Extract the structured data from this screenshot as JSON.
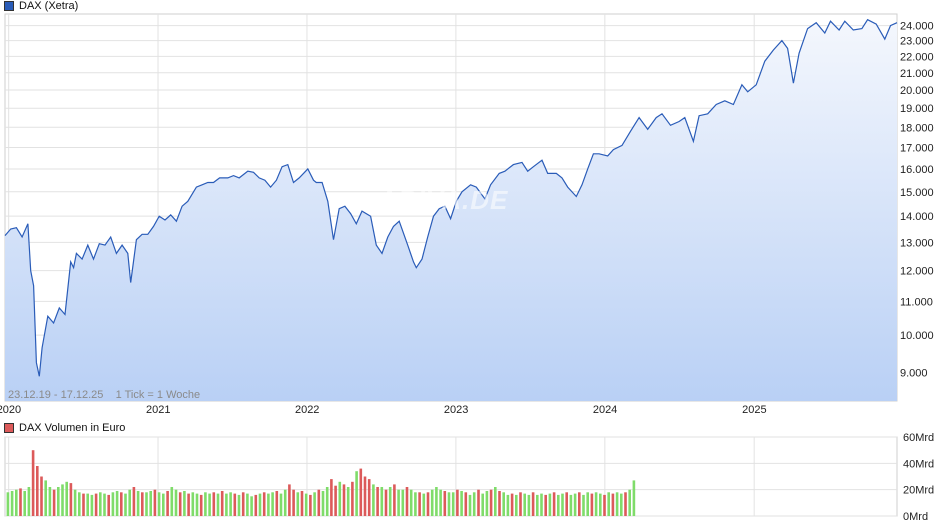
{
  "chart_data": [
    {
      "type": "area",
      "legend": "DAX (Xetra)",
      "color_line": "#2a5cb8",
      "color_fill_top": "#f4f7fd",
      "color_fill_bottom": "#b9d0f5",
      "range_label": "23.12.19 - 17.12.25    1 Tick = 1 Woche",
      "watermark": "ARIVA.DE",
      "y_ticks": [
        {
          "v": 9000,
          "label": "9.000"
        },
        {
          "v": 10000,
          "label": "10.000"
        },
        {
          "v": 11000,
          "label": "11.000"
        },
        {
          "v": 12000,
          "label": "12.000"
        },
        {
          "v": 13000,
          "label": "13.000"
        },
        {
          "v": 14000,
          "label": "14.000"
        },
        {
          "v": 15000,
          "label": "15.000"
        },
        {
          "v": 16000,
          "label": "16.000"
        },
        {
          "v": 17000,
          "label": "17.000"
        },
        {
          "v": 18000,
          "label": "18.000"
        },
        {
          "v": 19000,
          "label": "19.000"
        },
        {
          "v": 20000,
          "label": "20.000"
        },
        {
          "v": 21000,
          "label": "21.000"
        },
        {
          "v": 22000,
          "label": "22.000"
        },
        {
          "v": 23000,
          "label": "23.000"
        },
        {
          "v": 24000,
          "label": "24.000"
        }
      ],
      "y_scale": "log",
      "x_ticks": [
        "2020",
        "2021",
        "2022",
        "2023",
        "2024",
        "2025"
      ],
      "points": [
        [
          "2019-12-23",
          13250
        ],
        [
          "2020-01-06",
          13500
        ],
        [
          "2020-01-20",
          13550
        ],
        [
          "2020-02-03",
          13200
        ],
        [
          "2020-02-17",
          13700
        ],
        [
          "2020-02-24",
          12000
        ],
        [
          "2020-03-02",
          11500
        ],
        [
          "2020-03-09",
          9250
        ],
        [
          "2020-03-16",
          8900
        ],
        [
          "2020-03-23",
          9650
        ],
        [
          "2020-04-06",
          10550
        ],
        [
          "2020-04-20",
          10350
        ],
        [
          "2020-05-04",
          10800
        ],
        [
          "2020-05-18",
          10600
        ],
        [
          "2020-06-01",
          12300
        ],
        [
          "2020-06-08",
          12100
        ],
        [
          "2020-06-15",
          12600
        ],
        [
          "2020-06-29",
          12400
        ],
        [
          "2020-07-13",
          12900
        ],
        [
          "2020-07-27",
          12400
        ],
        [
          "2020-08-10",
          12950
        ],
        [
          "2020-08-24",
          12900
        ],
        [
          "2020-09-07",
          13200
        ],
        [
          "2020-09-21",
          12600
        ],
        [
          "2020-10-05",
          12900
        ],
        [
          "2020-10-19",
          12600
        ],
        [
          "2020-10-26",
          11600
        ],
        [
          "2020-11-09",
          13100
        ],
        [
          "2020-11-23",
          13300
        ],
        [
          "2020-12-07",
          13300
        ],
        [
          "2020-12-21",
          13600
        ],
        [
          "2021-01-04",
          14000
        ],
        [
          "2021-01-18",
          13850
        ],
        [
          "2021-02-01",
          14050
        ],
        [
          "2021-02-15",
          13800
        ],
        [
          "2021-03-01",
          14400
        ],
        [
          "2021-03-15",
          14600
        ],
        [
          "2021-04-05",
          15200
        ],
        [
          "2021-04-19",
          15300
        ],
        [
          "2021-05-03",
          15400
        ],
        [
          "2021-05-17",
          15400
        ],
        [
          "2021-06-01",
          15600
        ],
        [
          "2021-06-21",
          15600
        ],
        [
          "2021-07-05",
          15700
        ],
        [
          "2021-07-19",
          15600
        ],
        [
          "2021-08-09",
          15900
        ],
        [
          "2021-08-23",
          15850
        ],
        [
          "2021-09-06",
          15600
        ],
        [
          "2021-09-20",
          15500
        ],
        [
          "2021-10-04",
          15200
        ],
        [
          "2021-10-18",
          15500
        ],
        [
          "2021-11-01",
          16100
        ],
        [
          "2021-11-15",
          16200
        ],
        [
          "2021-11-29",
          15400
        ],
        [
          "2021-12-13",
          15600
        ],
        [
          "2022-01-03",
          16000
        ],
        [
          "2022-01-17",
          15500
        ],
        [
          "2022-01-24",
          15400
        ],
        [
          "2022-02-07",
          15400
        ],
        [
          "2022-02-21",
          14600
        ],
        [
          "2022-03-07",
          13100
        ],
        [
          "2022-03-21",
          14300
        ],
        [
          "2022-04-04",
          14400
        ],
        [
          "2022-04-18",
          14100
        ],
        [
          "2022-05-02",
          13700
        ],
        [
          "2022-05-16",
          14200
        ],
        [
          "2022-06-06",
          14000
        ],
        [
          "2022-06-20",
          12900
        ],
        [
          "2022-07-04",
          12600
        ],
        [
          "2022-07-18",
          13200
        ],
        [
          "2022-08-01",
          13600
        ],
        [
          "2022-08-15",
          13800
        ],
        [
          "2022-09-05",
          12900
        ],
        [
          "2022-09-19",
          12300
        ],
        [
          "2022-09-26",
          12100
        ],
        [
          "2022-10-10",
          12400
        ],
        [
          "2022-10-24",
          13200
        ],
        [
          "2022-11-07",
          14000
        ],
        [
          "2022-11-21",
          14300
        ],
        [
          "2022-12-05",
          14400
        ],
        [
          "2022-12-19",
          13900
        ],
        [
          "2023-01-02",
          14600
        ],
        [
          "2023-01-16",
          15000
        ],
        [
          "2023-02-06",
          15300
        ],
        [
          "2023-02-20",
          15200
        ],
        [
          "2023-03-13",
          14700
        ],
        [
          "2023-03-27",
          15300
        ],
        [
          "2023-04-17",
          15800
        ],
        [
          "2023-05-01",
          15900
        ],
        [
          "2023-05-22",
          16200
        ],
        [
          "2023-06-12",
          16300
        ],
        [
          "2023-06-26",
          15900
        ],
        [
          "2023-07-10",
          16100
        ],
        [
          "2023-07-31",
          16400
        ],
        [
          "2023-08-14",
          15800
        ],
        [
          "2023-09-04",
          15800
        ],
        [
          "2023-09-18",
          15600
        ],
        [
          "2023-10-02",
          15200
        ],
        [
          "2023-10-23",
          14800
        ],
        [
          "2023-11-06",
          15300
        ],
        [
          "2023-11-20",
          16000
        ],
        [
          "2023-12-04",
          16700
        ],
        [
          "2023-12-18",
          16700
        ],
        [
          "2024-01-08",
          16600
        ],
        [
          "2024-01-22",
          16900
        ],
        [
          "2024-02-12",
          17100
        ],
        [
          "2024-03-04",
          17800
        ],
        [
          "2024-03-25",
          18500
        ],
        [
          "2024-04-15",
          17900
        ],
        [
          "2024-05-06",
          18500
        ],
        [
          "2024-05-20",
          18700
        ],
        [
          "2024-06-10",
          18100
        ],
        [
          "2024-07-01",
          18300
        ],
        [
          "2024-07-15",
          18500
        ],
        [
          "2024-08-05",
          17300
        ],
        [
          "2024-08-19",
          18600
        ],
        [
          "2024-09-09",
          18700
        ],
        [
          "2024-09-30",
          19200
        ],
        [
          "2024-10-21",
          19400
        ],
        [
          "2024-11-11",
          19200
        ],
        [
          "2024-12-02",
          20300
        ],
        [
          "2024-12-16",
          19900
        ],
        [
          "2025-01-06",
          20300
        ],
        [
          "2025-01-27",
          21700
        ],
        [
          "2025-02-17",
          22400
        ],
        [
          "2025-03-10",
          23000
        ],
        [
          "2025-03-24",
          22500
        ],
        [
          "2025-04-07",
          20400
        ],
        [
          "2025-04-21",
          22200
        ],
        [
          "2025-05-12",
          23800
        ],
        [
          "2025-06-02",
          24200
        ],
        [
          "2025-06-23",
          23500
        ],
        [
          "2025-07-07",
          24300
        ],
        [
          "2025-07-28",
          23700
        ],
        [
          "2025-08-11",
          24300
        ],
        [
          "2025-09-01",
          23700
        ],
        [
          "2025-09-22",
          23800
        ],
        [
          "2025-10-06",
          24400
        ],
        [
          "2025-10-27",
          24100
        ],
        [
          "2025-11-17",
          23100
        ],
        [
          "2025-12-01",
          24000
        ],
        [
          "2025-12-17",
          24200
        ]
      ]
    },
    {
      "type": "bar",
      "legend": "DAX Volumen in Euro",
      "color_up": "#7fdc6a",
      "color_down": "#dc5a5a",
      "y_ticks": [
        {
          "v": 0,
          "label": "0Mrd"
        },
        {
          "v": 20,
          "label": "20Mrd"
        },
        {
          "v": 40,
          "label": "40Mrd"
        },
        {
          "v": 60,
          "label": "60Mrd"
        }
      ],
      "unit": "Mrd",
      "values_mrd": [
        18,
        19,
        20,
        21,
        19,
        22,
        50,
        38,
        30,
        27,
        22,
        20,
        22,
        24,
        26,
        25,
        20,
        18,
        17,
        17,
        16,
        17,
        18,
        17,
        16,
        18,
        19,
        18,
        17,
        20,
        22,
        19,
        18,
        18,
        19,
        20,
        18,
        17,
        19,
        22,
        20,
        18,
        19,
        17,
        18,
        17,
        16,
        18,
        17,
        18,
        17,
        19,
        17,
        18,
        17,
        16,
        18,
        17,
        15,
        16,
        17,
        18,
        17,
        18,
        19,
        17,
        20,
        24,
        20,
        18,
        19,
        17,
        16,
        18,
        20,
        19,
        22,
        28,
        23,
        26,
        24,
        22,
        26,
        34,
        36,
        30,
        28,
        24,
        22,
        22,
        20,
        22,
        24,
        20,
        20,
        22,
        20,
        18,
        18,
        17,
        18,
        20,
        22,
        20,
        19,
        18,
        18,
        20,
        19,
        18,
        16,
        18,
        20,
        17,
        19,
        20,
        22,
        19,
        18,
        16,
        17,
        16,
        18,
        17,
        16,
        18,
        16,
        17,
        16,
        17,
        18,
        16,
        17,
        18,
        16,
        17,
        18,
        16,
        18,
        17,
        18,
        17,
        16,
        18,
        17,
        18,
        17,
        18,
        20,
        27
      ],
      "up_flags": [
        1,
        1,
        1,
        0,
        1,
        1,
        0,
        0,
        0,
        1,
        1,
        0,
        1,
        1,
        1,
        0,
        1,
        1,
        0,
        1,
        1,
        0,
        1,
        1,
        0,
        1,
        1,
        0,
        1,
        1,
        0,
        1,
        0,
        1,
        1,
        0,
        1,
        1,
        0,
        1,
        1,
        0,
        1,
        0,
        1,
        1,
        0,
        1,
        1,
        0,
        1,
        0,
        1,
        1,
        0,
        1,
        0,
        1,
        1,
        0,
        1,
        0,
        1,
        1,
        0,
        1,
        1,
        0,
        0,
        1,
        0,
        1,
        0,
        1,
        0,
        1,
        1,
        0,
        0,
        1,
        0,
        1,
        0,
        1,
        0,
        0,
        0,
        1,
        0,
        1,
        0,
        1,
        0,
        1,
        1,
        0,
        1,
        1,
        0,
        1,
        0,
        1,
        1,
        1,
        0,
        1,
        1,
        0,
        1,
        0,
        1,
        1,
        0,
        1,
        1,
        0,
        1,
        0,
        1,
        1,
        0,
        1,
        0,
        1,
        1,
        0,
        1,
        1,
        0,
        1,
        0,
        1,
        1,
        0,
        1,
        1,
        0,
        1,
        1,
        0,
        1,
        1,
        0,
        1,
        0,
        1,
        1,
        0,
        1,
        1
      ]
    }
  ]
}
